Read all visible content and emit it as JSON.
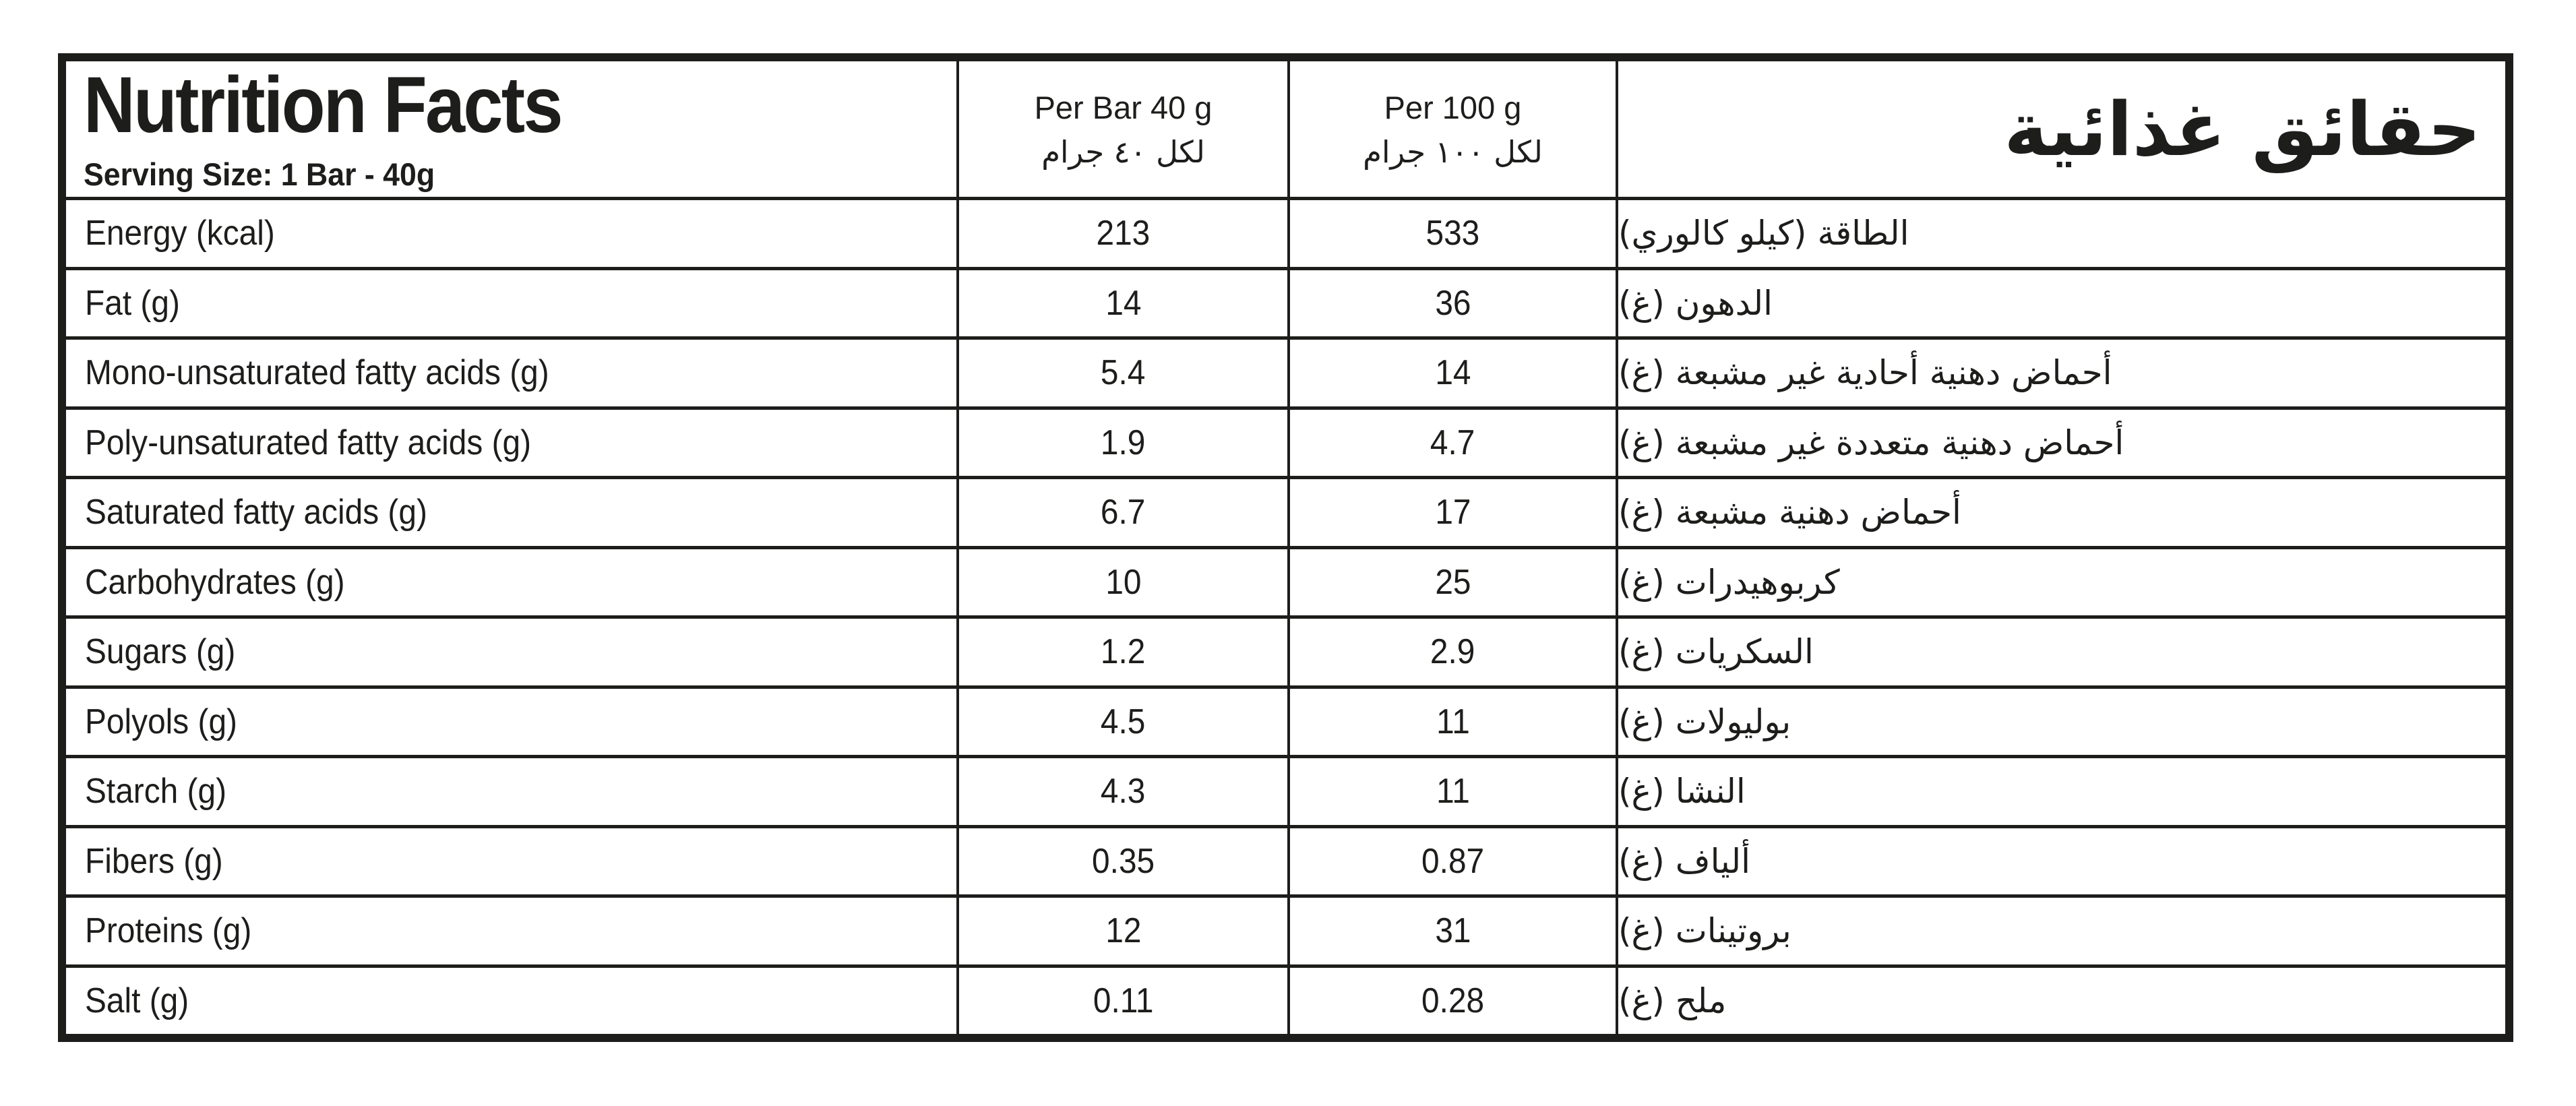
{
  "colors": {
    "ink": "#1d1d1b",
    "background": "#ffffff"
  },
  "header": {
    "title_en": "Nutrition Facts",
    "serving_size": "Serving Size: 1 Bar - 40g",
    "per_bar": {
      "en": "Per Bar 40 g",
      "ar": "لكل ٤٠ جرام"
    },
    "per_100": {
      "en": "Per 100 g",
      "ar": "لكل ١٠٠ جرام"
    },
    "title_ar": "حقائق غذائية"
  },
  "rows": [
    {
      "en": "Energy (kcal)",
      "per_bar": "213",
      "per_100": "533",
      "ar": "الطاقة (كيلو كالوري)"
    },
    {
      "en": "Fat (g)",
      "per_bar": "14",
      "per_100": "36",
      "ar": "الدهون (غ)"
    },
    {
      "en": "Mono-unsaturated fatty acids (g)",
      "per_bar": "5.4",
      "per_100": "14",
      "ar": "أحماض دهنية أحادية غير مشبعة (غ)"
    },
    {
      "en": "Poly-unsaturated fatty acids (g)",
      "per_bar": "1.9",
      "per_100": "4.7",
      "ar": "أحماض دهنية متعددة غير مشبعة (غ)"
    },
    {
      "en": "Saturated fatty acids (g)",
      "per_bar": "6.7",
      "per_100": "17",
      "ar": "أحماض دهنية مشبعة (غ)"
    },
    {
      "en": "Carbohydrates (g)",
      "per_bar": "10",
      "per_100": "25",
      "ar": "كربوهيدرات (غ)"
    },
    {
      "en": "Sugars (g)",
      "per_bar": "1.2",
      "per_100": "2.9",
      "ar": "السكريات (غ)"
    },
    {
      "en": "Polyols (g)",
      "per_bar": "4.5",
      "per_100": "11",
      "ar": "بوليولات (غ)"
    },
    {
      "en": "Starch (g)",
      "per_bar": "4.3",
      "per_100": "11",
      "ar": "النشا (غ)"
    },
    {
      "en": "Fibers (g)",
      "per_bar": "0.35",
      "per_100": "0.87",
      "ar": "ألياف (غ)"
    },
    {
      "en": "Proteins (g)",
      "per_bar": "12",
      "per_100": "31",
      "ar": "بروتينات (غ)"
    },
    {
      "en": "Salt (g)",
      "per_bar": "0.11",
      "per_100": "0.28",
      "ar": "ملح (غ)"
    }
  ]
}
